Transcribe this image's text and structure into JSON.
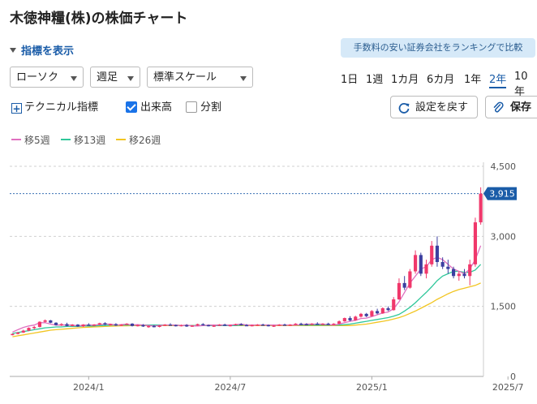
{
  "header": {
    "title": "木徳神糧(株)の株価チャート"
  },
  "controls": {
    "indicator_toggle": "指標を表示",
    "ranking_banner": "手数料の安い証券会社をランキングで比較",
    "chart_type": "ローソク",
    "period": "週足",
    "scale": "標準スケール",
    "ranges": [
      "1日",
      "1週",
      "1カ月",
      "6カ月",
      "1年",
      "2年",
      "10年"
    ],
    "active_range": "2年",
    "technical": "テクニカル指標",
    "volume": "出来高",
    "split": "分割",
    "reset": "設定を戻す",
    "save": "保存"
  },
  "colors": {
    "up": "#f0386b",
    "down": "#3c3fa0",
    "ma5": "#e070c0",
    "ma13": "#2fc79a",
    "ma26": "#f2c521",
    "accent": "#1a5ca8"
  },
  "chart_data": {
    "type": "candlestick",
    "y_ticks": [
      "4,500",
      "3,000",
      "1,500",
      "0"
    ],
    "ylim": [
      0,
      4500
    ],
    "x_ticks": [
      "2024/1",
      "2024/7",
      "2025/1",
      "2025/7"
    ],
    "current_price": 3915,
    "current_price_label": "3,915",
    "grid": true,
    "series": [
      {
        "name": "移5週",
        "values": [
          950,
          1000,
          1050,
          1080,
          1100,
          1150,
          1150,
          1120,
          1100,
          1100,
          1100,
          1100,
          1080,
          1100,
          1100,
          1100,
          1110,
          1120,
          1120,
          1100,
          1110,
          1120,
          1100,
          1110,
          1100,
          1090,
          1080,
          1090,
          1100,
          1100,
          1100,
          1090,
          1100,
          1080,
          1080,
          1090,
          1100,
          1100,
          1100,
          1100,
          1100,
          1110,
          1120,
          1100,
          1100,
          1100,
          1100,
          1100,
          1100,
          1100,
          1100,
          1100,
          1100,
          1110,
          1120,
          1120,
          1120,
          1120,
          1110,
          1100,
          1120,
          1150,
          1180,
          1200,
          1240,
          1250,
          1280,
          1320,
          1360,
          1380,
          1450,
          1600,
          1800,
          2000,
          2150,
          2300,
          2350,
          2500,
          2550,
          2500,
          2400,
          2300,
          2250,
          2200,
          2300,
          2500,
          2800
        ]
      },
      {
        "name": "移13週",
        "values": [
          920,
          940,
          960,
          980,
          1000,
          1020,
          1040,
          1050,
          1060,
          1060,
          1070,
          1070,
          1070,
          1080,
          1080,
          1080,
          1090,
          1090,
          1100,
          1100,
          1100,
          1100,
          1100,
          1100,
          1100,
          1100,
          1100,
          1100,
          1100,
          1100,
          1100,
          1090,
          1090,
          1090,
          1090,
          1090,
          1090,
          1090,
          1090,
          1090,
          1090,
          1090,
          1100,
          1100,
          1100,
          1100,
          1100,
          1100,
          1100,
          1100,
          1100,
          1100,
          1100,
          1100,
          1100,
          1100,
          1100,
          1100,
          1100,
          1100,
          1100,
          1110,
          1120,
          1140,
          1160,
          1180,
          1200,
          1220,
          1240,
          1260,
          1290,
          1330,
          1400,
          1480,
          1580,
          1690,
          1800,
          1920,
          2050,
          2150,
          2200,
          2250,
          2250,
          2230,
          2230,
          2280,
          2400
        ]
      },
      {
        "name": "移26週",
        "values": [
          850,
          870,
          890,
          910,
          930,
          950,
          970,
          990,
          1000,
          1010,
          1020,
          1030,
          1040,
          1050,
          1055,
          1060,
          1065,
          1070,
          1075,
          1080,
          1085,
          1085,
          1090,
          1090,
          1090,
          1090,
          1090,
          1090,
          1090,
          1090,
          1090,
          1090,
          1090,
          1090,
          1090,
          1090,
          1090,
          1090,
          1090,
          1090,
          1090,
          1090,
          1090,
          1090,
          1090,
          1090,
          1090,
          1090,
          1090,
          1090,
          1090,
          1090,
          1090,
          1090,
          1090,
          1090,
          1090,
          1090,
          1090,
          1090,
          1090,
          1090,
          1090,
          1100,
          1110,
          1120,
          1140,
          1160,
          1180,
          1200,
          1230,
          1260,
          1300,
          1350,
          1400,
          1460,
          1520,
          1580,
          1650,
          1710,
          1770,
          1820,
          1860,
          1890,
          1920,
          1950,
          2000
        ]
      }
    ],
    "candles": [
      [
        900,
        920,
        880,
        910
      ],
      [
        910,
        950,
        900,
        940
      ],
      [
        940,
        1000,
        930,
        980
      ],
      [
        980,
        1050,
        970,
        1040
      ],
      [
        1040,
        1080,
        1010,
        1060
      ],
      [
        1060,
        1180,
        1050,
        1170
      ],
      [
        1170,
        1220,
        1150,
        1200
      ],
      [
        1200,
        1210,
        1140,
        1150
      ],
      [
        1150,
        1160,
        1090,
        1100
      ],
      [
        1100,
        1140,
        1080,
        1120
      ],
      [
        1120,
        1150,
        1070,
        1080
      ],
      [
        1080,
        1120,
        1070,
        1110
      ],
      [
        1110,
        1120,
        1060,
        1070
      ],
      [
        1070,
        1120,
        1060,
        1110
      ],
      [
        1110,
        1140,
        1090,
        1100
      ],
      [
        1100,
        1120,
        1080,
        1110
      ],
      [
        1110,
        1150,
        1100,
        1140
      ],
      [
        1140,
        1160,
        1100,
        1110
      ],
      [
        1110,
        1130,
        1090,
        1120
      ],
      [
        1120,
        1140,
        1080,
        1090
      ],
      [
        1090,
        1120,
        1080,
        1110
      ],
      [
        1110,
        1140,
        1100,
        1130
      ],
      [
        1130,
        1140,
        1070,
        1080
      ],
      [
        1080,
        1110,
        1070,
        1100
      ],
      [
        1100,
        1120,
        1060,
        1070
      ],
      [
        1070,
        1090,
        1040,
        1080
      ],
      [
        1080,
        1100,
        1050,
        1060
      ],
      [
        1060,
        1100,
        1050,
        1090
      ],
      [
        1090,
        1120,
        1080,
        1110
      ],
      [
        1110,
        1140,
        1090,
        1100
      ],
      [
        1100,
        1110,
        1070,
        1080
      ],
      [
        1080,
        1110,
        1070,
        1100
      ],
      [
        1100,
        1120,
        1060,
        1070
      ],
      [
        1070,
        1100,
        1060,
        1090
      ],
      [
        1090,
        1130,
        1080,
        1120
      ],
      [
        1120,
        1140,
        1090,
        1100
      ],
      [
        1100,
        1110,
        1070,
        1080
      ],
      [
        1080,
        1100,
        1060,
        1090
      ],
      [
        1090,
        1120,
        1080,
        1110
      ],
      [
        1110,
        1130,
        1080,
        1090
      ],
      [
        1090,
        1110,
        1070,
        1100
      ],
      [
        1100,
        1130,
        1090,
        1120
      ],
      [
        1120,
        1140,
        1090,
        1100
      ],
      [
        1100,
        1120,
        1080,
        1090
      ],
      [
        1090,
        1110,
        1070,
        1100
      ],
      [
        1100,
        1120,
        1080,
        1110
      ],
      [
        1110,
        1130,
        1090,
        1100
      ],
      [
        1100,
        1110,
        1070,
        1080
      ],
      [
        1080,
        1100,
        1060,
        1090
      ],
      [
        1090,
        1120,
        1080,
        1110
      ],
      [
        1110,
        1130,
        1090,
        1100
      ],
      [
        1100,
        1120,
        1080,
        1110
      ],
      [
        1110,
        1140,
        1100,
        1130
      ],
      [
        1130,
        1150,
        1100,
        1120
      ],
      [
        1120,
        1140,
        1100,
        1110
      ],
      [
        1110,
        1140,
        1100,
        1130
      ],
      [
        1130,
        1160,
        1110,
        1120
      ],
      [
        1120,
        1140,
        1100,
        1130
      ],
      [
        1130,
        1150,
        1100,
        1110
      ],
      [
        1110,
        1140,
        1100,
        1130
      ],
      [
        1130,
        1200,
        1120,
        1180
      ],
      [
        1180,
        1260,
        1170,
        1250
      ],
      [
        1250,
        1290,
        1180,
        1200
      ],
      [
        1200,
        1300,
        1190,
        1280
      ],
      [
        1280,
        1360,
        1260,
        1340
      ],
      [
        1340,
        1360,
        1270,
        1290
      ],
      [
        1290,
        1420,
        1280,
        1400
      ],
      [
        1400,
        1450,
        1330,
        1350
      ],
      [
        1350,
        1480,
        1340,
        1460
      ],
      [
        1460,
        1500,
        1400,
        1420
      ],
      [
        1420,
        1700,
        1410,
        1650
      ],
      [
        1650,
        2100,
        1640,
        2000
      ],
      [
        2000,
        2150,
        1850,
        1900
      ],
      [
        1900,
        2300,
        1880,
        2250
      ],
      [
        2250,
        2700,
        2200,
        2600
      ],
      [
        2600,
        2650,
        2150,
        2200
      ],
      [
        2200,
        2500,
        2100,
        2400
      ],
      [
        2400,
        2900,
        2350,
        2800
      ],
      [
        2800,
        3000,
        2350,
        2450
      ],
      [
        2450,
        2550,
        2300,
        2350
      ],
      [
        2350,
        2500,
        2200,
        2300
      ],
      [
        2300,
        2350,
        2100,
        2150
      ],
      [
        2150,
        2250,
        2050,
        2200
      ],
      [
        2200,
        2300,
        2100,
        2150
      ],
      [
        2150,
        2500,
        1950,
        2400
      ],
      [
        2400,
        3400,
        2350,
        3300
      ],
      [
        3300,
        4050,
        3250,
        3915
      ]
    ]
  }
}
